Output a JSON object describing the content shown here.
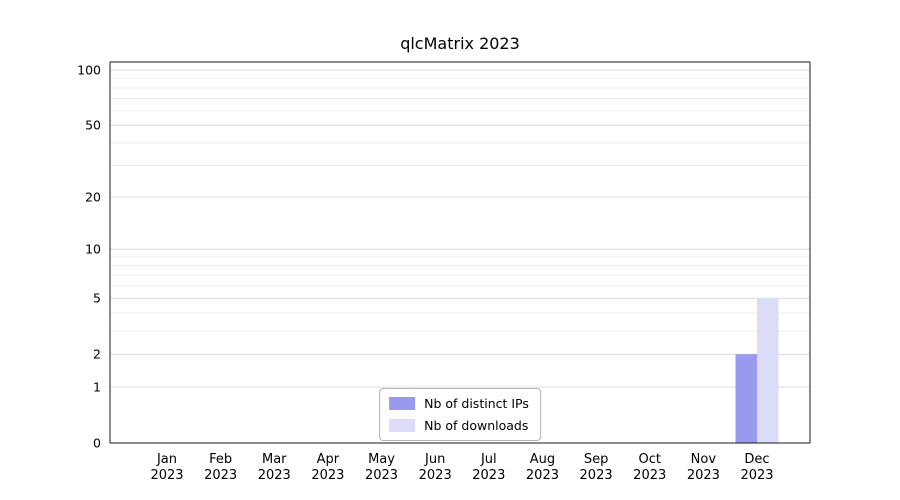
{
  "chart_data": {
    "type": "bar",
    "title": "qlcMatrix 2023",
    "months": [
      "Jan",
      "Feb",
      "Mar",
      "Apr",
      "May",
      "Jun",
      "Jul",
      "Aug",
      "Sep",
      "Oct",
      "Nov",
      "Dec"
    ],
    "year_label": "2023",
    "series": [
      {
        "name": "Nb of distinct IPs",
        "color": "#9999ee",
        "values": [
          0,
          0,
          0,
          0,
          0,
          0,
          0,
          0,
          0,
          0,
          0,
          2
        ]
      },
      {
        "name": "Nb of downloads",
        "color": "#dcdcf9",
        "values": [
          0,
          0,
          0,
          0,
          0,
          0,
          0,
          0,
          0,
          0,
          0,
          5
        ]
      }
    ],
    "y_ticks": [
      0,
      1,
      2,
      5,
      10,
      20,
      50,
      100
    ],
    "y_minor_ticks": [
      3,
      4,
      6,
      7,
      8,
      9,
      30,
      40,
      60,
      70,
      80,
      90
    ],
    "ylim": [
      0,
      110
    ],
    "yscale": "log10(value+1)",
    "xlabel": "",
    "ylabel": "",
    "grid": "horizontal",
    "legend_position": "lower center",
    "colors": {
      "major_gridline": "#dcdcdc",
      "minor_gridline": "#efefef",
      "plot_border": "#1a1a1a",
      "text": "#000000"
    }
  }
}
